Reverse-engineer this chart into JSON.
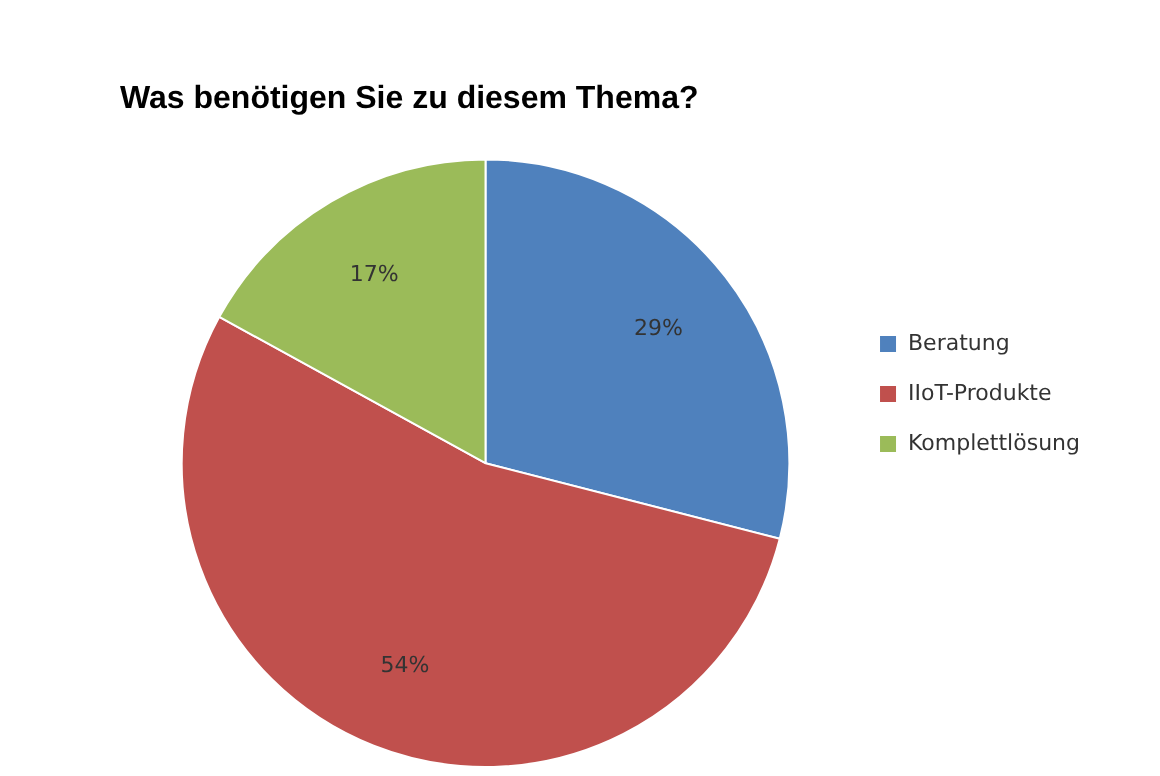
{
  "chart_data": {
    "type": "pie",
    "title": "Was benötigen Sie zu diesem Thema?",
    "categories": [
      "Beratung",
      "IIoT-Produkte",
      "Komplettlösung"
    ],
    "values": [
      29,
      54,
      17
    ],
    "value_labels": [
      "29%",
      "54%",
      "17%"
    ],
    "colors": [
      "#4f81bd",
      "#c0504d",
      "#9bbb59"
    ],
    "legend": "right"
  }
}
